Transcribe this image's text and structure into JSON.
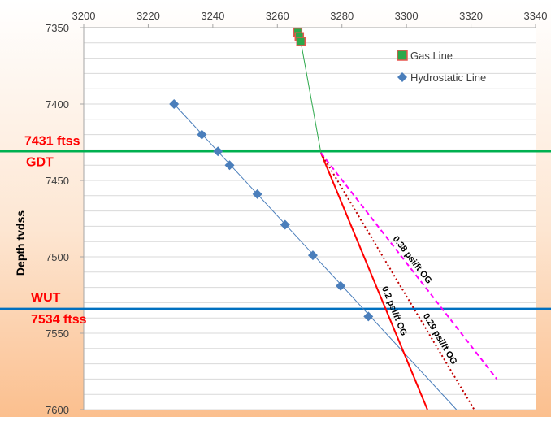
{
  "chart_data": {
    "type": "scatter",
    "xlim": [
      3200,
      3340
    ],
    "ylim": [
      7350,
      7600
    ],
    "y_inverted": true,
    "x_axis_position": "top",
    "grid": "horizontal",
    "x_ticks": [
      "3200",
      "3220",
      "3240",
      "3260",
      "3280",
      "3300",
      "3320",
      "3340"
    ],
    "y_ticks": [
      "7350",
      "7400",
      "7450",
      "7500",
      "7550",
      "7600"
    ],
    "ylabel": "Depth tvdss",
    "legend_position": "top-right",
    "series": [
      {
        "name": "Gas Line",
        "marker": "square",
        "color": "#2ba84a",
        "edge_color": "#e8554e",
        "x": [
          3266.3,
          3266.8,
          3267.3
        ],
        "y": [
          7353,
          7356,
          7359
        ]
      },
      {
        "name": "Hydrostatic Line",
        "marker": "diamond",
        "color": "#4a7ebb",
        "x": [
          3228,
          3236.6,
          3241.6,
          3245.2,
          3253.8,
          3262.4,
          3271,
          3279.6,
          3288.2
        ],
        "y": [
          7400,
          7420,
          7431,
          7440,
          7459,
          7479,
          7499,
          7519,
          7539
        ]
      }
    ],
    "trend_lines": [
      {
        "kind": "gas-trend",
        "color": "#2ba84a",
        "x": [
          3267.5,
          3273.5
        ],
        "y": [
          7362,
          7432
        ]
      },
      {
        "kind": "hydrostatic-trend",
        "color": "#4a7ebb",
        "x": [
          3228,
          3315.5
        ],
        "y": [
          7400,
          7600
        ]
      },
      {
        "kind": "og-0.2",
        "label": "0.2 psi/ft OG",
        "color": "#ff0000",
        "dash": "solid",
        "x": [
          3273.5,
          3306.5
        ],
        "y": [
          7432,
          7600
        ]
      },
      {
        "kind": "og-0.29",
        "label": "0.29 psi/ft OG",
        "color": "#c00000",
        "dash": "dotted",
        "x": [
          3273.5,
          3321
        ],
        "y": [
          7432,
          7600
        ]
      },
      {
        "kind": "og-0.38",
        "label": "0.38 psi/ft OG",
        "color": "#ff00ff",
        "dash": "dashed",
        "x": [
          3273.5,
          3328
        ],
        "y": [
          7432,
          7580
        ]
      }
    ],
    "horizontal_lines": [
      {
        "kind": "gdt",
        "color": "#00b050",
        "y": 7431,
        "labels": [
          "7431 ftss",
          "GDT"
        ]
      },
      {
        "kind": "wut",
        "color": "#0070c0",
        "y": 7534,
        "labels": [
          "WUT",
          "7534 ftss"
        ]
      }
    ]
  }
}
